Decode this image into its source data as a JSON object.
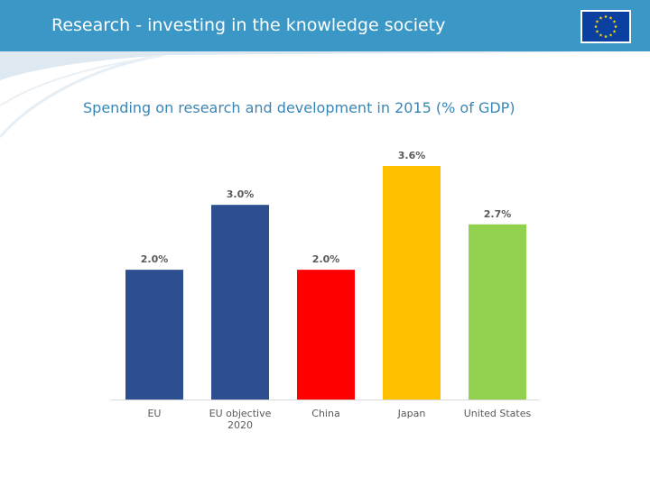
{
  "header": {
    "title": "Research - investing in the knowledge society",
    "background": "#3a97c6",
    "logo_icon": "eu-flag-icon",
    "logo_colors": {
      "field": "#0b3fa0",
      "stars": "#ffdd00"
    }
  },
  "subtitle": "Spending on research and development in 2015 (% of GDP)",
  "chart_data": {
    "type": "bar",
    "categories": [
      "EU",
      "EU objective 2020",
      "China",
      "Japan",
      "United States"
    ],
    "category_label_lines": [
      [
        "EU"
      ],
      [
        "EU objective",
        "2020"
      ],
      [
        "China"
      ],
      [
        "Japan"
      ],
      [
        "United States"
      ]
    ],
    "values": [
      2.0,
      3.0,
      2.0,
      3.6,
      2.7
    ],
    "data_labels": [
      "2.0%",
      "3.0%",
      "2.0%",
      "3.6%",
      "2.7%"
    ],
    "colors": [
      "#2e4f8f",
      "#2e4f8f",
      "#ff0000",
      "#ffc000",
      "#92d050"
    ],
    "ylim": [
      0,
      3.6
    ],
    "grid": false,
    "legend": "none",
    "title": "",
    "xlabel": "",
    "ylabel": ""
  }
}
